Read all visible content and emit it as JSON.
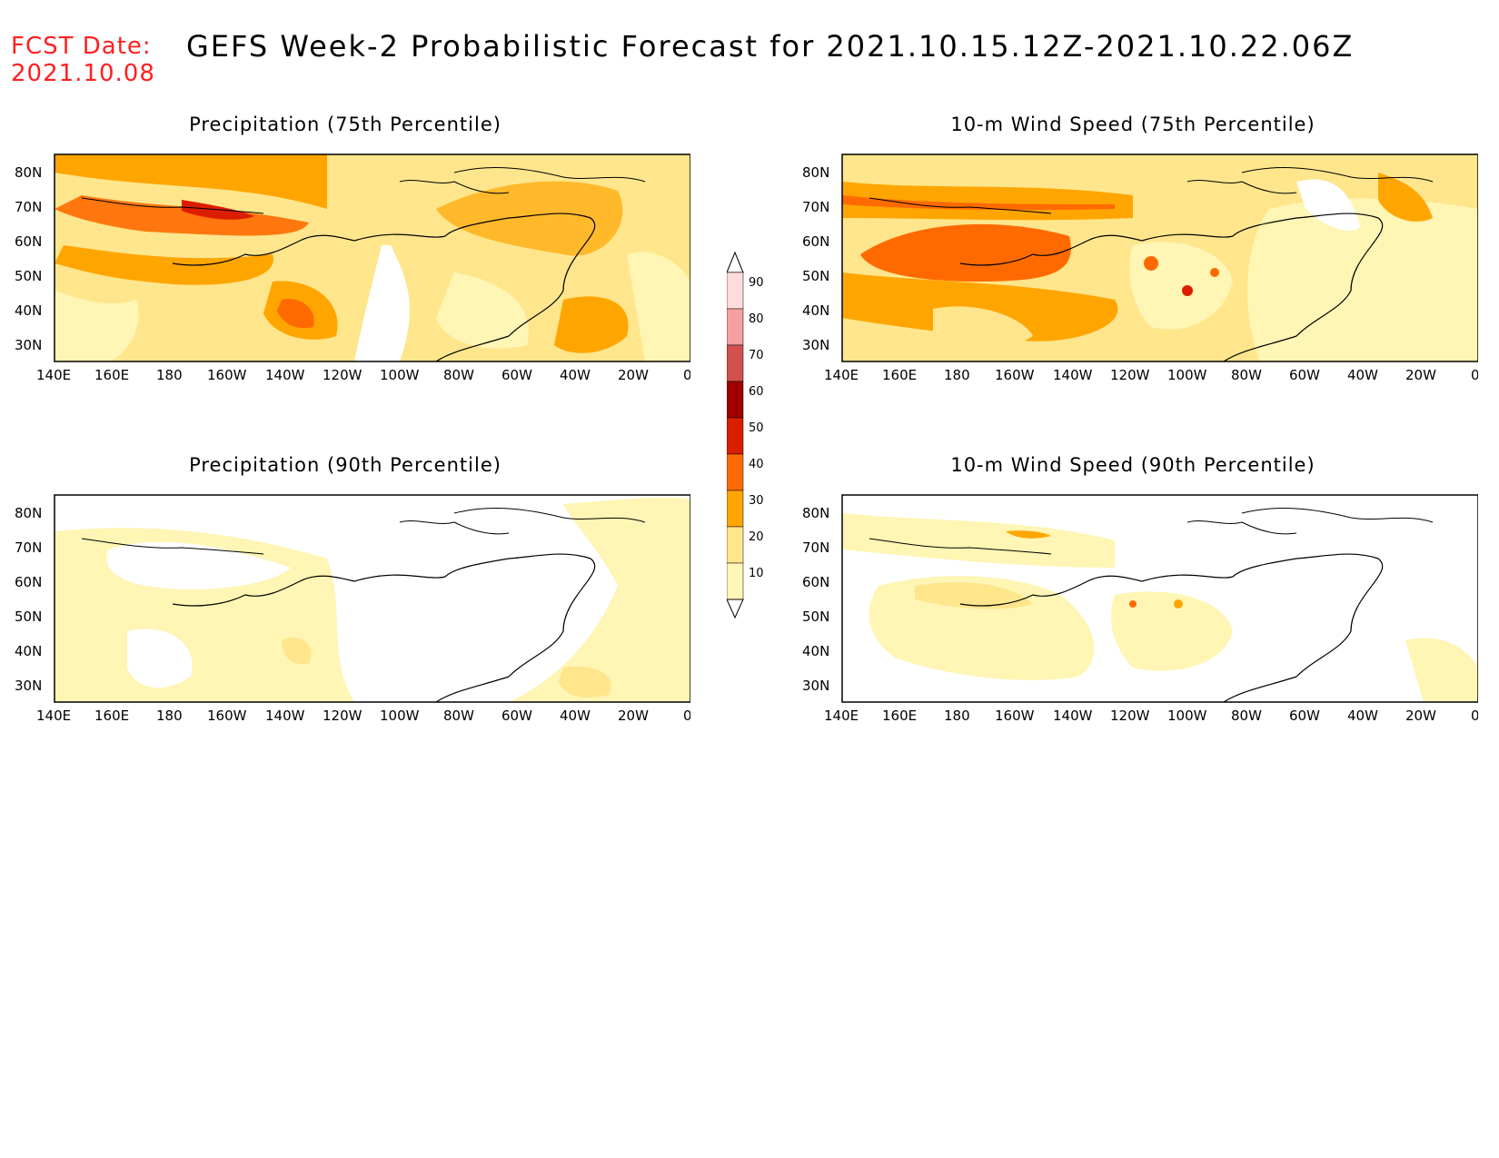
{
  "header": {
    "fcst_label": "FCST Date:",
    "fcst_date": "2021.10.08",
    "title": "GEFS Week-2 Probabilistic Forecast for 2021.10.15.12Z-2021.10.22.06Z"
  },
  "colors": {
    "fcst_text": "#ff2020",
    "shade_10": "#fff5b4",
    "shade_20": "#ffe68c",
    "shade_30": "#ffa500",
    "shade_40": "#ff6a00",
    "shade_50": "#dc1e00",
    "shade_60": "#a00000",
    "shade_70": "#d25050",
    "shade_80": "#f5a0a0",
    "shade_90": "#ffdcdc"
  },
  "axes": {
    "lon_labels": [
      "140E",
      "160E",
      "180",
      "160W",
      "140W",
      "120W",
      "100W",
      "80W",
      "60W",
      "40W",
      "20W",
      "0"
    ],
    "lat_labels": [
      "80N",
      "70N",
      "60N",
      "50N",
      "40N",
      "30N"
    ]
  },
  "colorbar": {
    "labels": [
      "90",
      "80",
      "70",
      "60",
      "50",
      "40",
      "30",
      "20",
      "10"
    ]
  },
  "panels": [
    {
      "title": "Precipitation (75th Percentile)",
      "intensity": "high"
    },
    {
      "title": "10-m Wind Speed (75th Percentile)",
      "intensity": "high"
    },
    {
      "title": "Precipitation (90th Percentile)",
      "intensity": "low"
    },
    {
      "title": "10-m Wind Speed (90th Percentile)",
      "intensity": "low"
    }
  ]
}
